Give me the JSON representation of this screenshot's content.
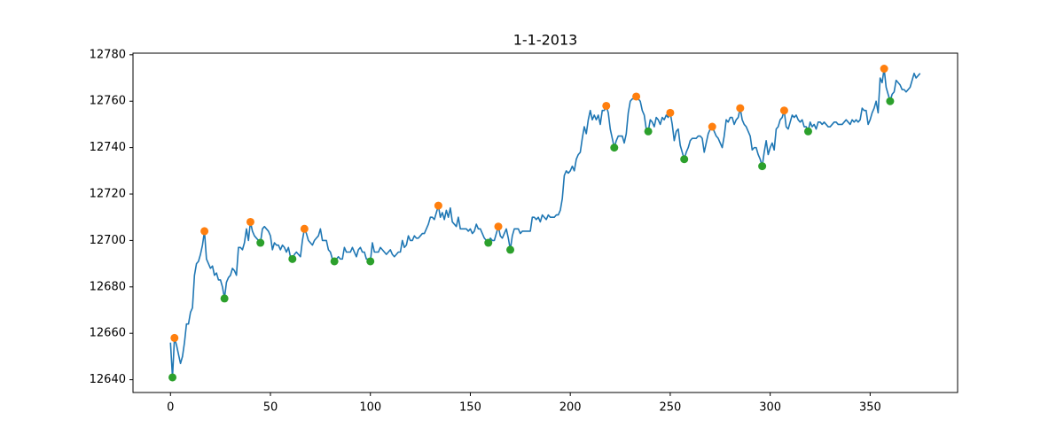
{
  "chart_data": {
    "type": "line",
    "title": "1-1-2013",
    "xlim": [
      -18.75,
      393.75
    ],
    "ylim": [
      12634.5,
      12780.7
    ],
    "xticks": [
      0,
      50,
      100,
      150,
      200,
      250,
      300,
      350
    ],
    "yticks": [
      12640,
      12660,
      12680,
      12700,
      12720,
      12740,
      12760,
      12780
    ],
    "grid": false,
    "series": [
      {
        "type": "line",
        "color": "#1f77b4",
        "x": [
          0,
          1,
          2,
          3,
          4,
          5,
          6,
          7,
          8,
          9,
          10,
          11,
          12,
          13,
          14,
          15,
          16,
          17,
          18,
          19,
          20,
          21,
          22,
          23,
          24,
          25,
          26,
          27,
          28,
          29,
          30,
          31,
          32,
          33,
          34,
          35,
          36,
          37,
          38,
          39,
          40,
          41,
          42,
          43,
          44,
          45,
          46,
          47,
          48,
          49,
          50,
          51,
          52,
          53,
          54,
          55,
          56,
          57,
          58,
          59,
          60,
          61,
          62,
          63,
          64,
          65,
          66,
          67,
          68,
          69,
          70,
          71,
          72,
          73,
          74,
          75,
          76,
          77,
          78,
          79,
          80,
          81,
          82,
          83,
          84,
          85,
          86,
          87,
          88,
          89,
          90,
          91,
          92,
          93,
          94,
          95,
          96,
          97,
          98,
          99,
          100,
          101,
          102,
          103,
          104,
          105,
          106,
          107,
          108,
          109,
          110,
          111,
          112,
          113,
          114,
          115,
          116,
          117,
          118,
          119,
          120,
          121,
          122,
          123,
          124,
          125,
          126,
          127,
          128,
          129,
          130,
          131,
          132,
          133,
          134,
          135,
          136,
          137,
          138,
          139,
          140,
          141,
          142,
          143,
          144,
          145,
          146,
          147,
          148,
          149,
          150,
          151,
          152,
          153,
          154,
          155,
          156,
          157,
          158,
          159,
          160,
          161,
          162,
          163,
          164,
          165,
          166,
          167,
          168,
          169,
          170,
          171,
          172,
          173,
          174,
          175,
          176,
          177,
          178,
          179,
          180,
          181,
          182,
          183,
          184,
          185,
          186,
          187,
          188,
          189,
          190,
          191,
          192,
          193,
          194,
          195,
          196,
          197,
          198,
          199,
          200,
          201,
          202,
          203,
          204,
          205,
          206,
          207,
          208,
          209,
          210,
          211,
          212,
          213,
          214,
          215,
          216,
          217,
          218,
          219,
          220,
          221,
          222,
          223,
          224,
          225,
          226,
          227,
          228,
          229,
          230,
          231,
          232,
          233,
          234,
          235,
          236,
          237,
          238,
          239,
          240,
          241,
          242,
          243,
          244,
          245,
          246,
          247,
          248,
          249,
          250,
          251,
          252,
          253,
          254,
          255,
          256,
          257,
          258,
          259,
          260,
          261,
          262,
          263,
          264,
          265,
          266,
          267,
          268,
          269,
          270,
          271,
          272,
          273,
          274,
          275,
          276,
          277,
          278,
          279,
          280,
          281,
          282,
          283,
          284,
          285,
          286,
          287,
          288,
          289,
          290,
          291,
          292,
          293,
          294,
          295,
          296,
          297,
          298,
          299,
          300,
          301,
          302,
          303,
          304,
          305,
          306,
          307,
          308,
          309,
          310,
          311,
          312,
          313,
          314,
          315,
          316,
          317,
          318,
          319,
          320,
          321,
          322,
          323,
          324,
          325,
          326,
          327,
          328,
          329,
          330,
          331,
          332,
          333,
          334,
          335,
          336,
          337,
          338,
          339,
          340,
          341,
          342,
          343,
          344,
          345,
          346,
          347,
          348,
          349,
          350,
          351,
          352,
          353,
          354,
          355,
          356,
          357,
          358,
          359,
          360,
          361,
          362,
          363,
          364,
          365,
          366,
          367,
          368,
          369,
          370,
          371,
          372,
          373,
          374,
          375
        ],
        "values": [
          12656,
          12641,
          12658,
          12655,
          12651,
          12647,
          12650,
          12656,
          12664,
          12664,
          12669,
          12671,
          12685,
          12690,
          12691,
          12694,
          12698,
          12704,
          12692,
          12690,
          12688,
          12689,
          12685,
          12686,
          12683,
          12683,
          12680,
          12675,
          12682,
          12684,
          12685,
          12688,
          12687,
          12685,
          12697,
          12697,
          12696,
          12699,
          12705,
          12700,
          12708,
          12704,
          12702,
          12701,
          12700,
          12699,
          12705,
          12706,
          12705,
          12704,
          12702,
          12696,
          12699,
          12698,
          12698,
          12696,
          12698,
          12697,
          12695,
          12697,
          12693,
          12692,
          12694,
          12695,
          12694,
          12693,
          12700,
          12705,
          12703,
          12700,
          12699,
          12698,
          12700,
          12701,
          12702,
          12705,
          12700,
          12700,
          12700,
          12696,
          12695,
          12692,
          12691,
          12692,
          12693,
          12692,
          12692,
          12697,
          12695,
          12695,
          12695,
          12697,
          12695,
          12693,
          12696,
          12697,
          12695,
          12695,
          12692,
          12692,
          12691,
          12699,
          12695,
          12695,
          12695,
          12697,
          12696,
          12695,
          12694,
          12695,
          12696,
          12694,
          12693,
          12694,
          12695,
          12695,
          12700,
          12697,
          12698,
          12702,
          12700,
          12700,
          12702,
          12701,
          12701,
          12702,
          12703,
          12703,
          12705,
          12707,
          12710,
          12710,
          12709,
          12712,
          12715,
          12710,
          12712,
          12709,
          12713,
          12710,
          12714,
          12708,
          12707,
          12706,
          12710,
          12705,
          12705,
          12705,
          12705,
          12704,
          12705,
          12703,
          12704,
          12707,
          12705,
          12705,
          12703,
          12701,
          12700,
          12699,
          12701,
          12700,
          12700,
          12703,
          12706,
          12702,
          12701,
          12703,
          12705,
          12701,
          12696,
          12702,
          12705,
          12705,
          12705,
          12703,
          12704,
          12704,
          12704,
          12704,
          12704,
          12710,
          12710,
          12709,
          12710,
          12708,
          12711,
          12710,
          12709,
          12711,
          12710,
          12710,
          12710,
          12711,
          12711,
          12713,
          12718,
          12728,
          12730,
          12729,
          12730,
          12732,
          12730,
          12735,
          12737,
          12738,
          12744,
          12749,
          12746,
          12752,
          12756,
          12752,
          12754,
          12752,
          12754,
          12750,
          12756,
          12756,
          12758,
          12755,
          12748,
          12744,
          12740,
          12743,
          12745,
          12745,
          12745,
          12742,
          12746,
          12755,
          12760,
          12761,
          12761,
          12762,
          12761,
          12760,
          12756,
          12754,
          12748,
          12747,
          12752,
          12751,
          12749,
          12753,
          12752,
          12750,
          12753,
          12752,
          12754,
          12753,
          12755,
          12750,
          12743,
          12747,
          12748,
          12741,
          12738,
          12735,
          12738,
          12740,
          12743,
          12744,
          12744,
          12744,
          12745,
          12745,
          12744,
          12738,
          12742,
          12746,
          12748,
          12749,
          12747,
          12745,
          12744,
          12742,
          12740,
          12745,
          12752,
          12751,
          12753,
          12753,
          12750,
          12752,
          12753,
          12757,
          12752,
          12750,
          12749,
          12747,
          12745,
          12739,
          12740,
          12740,
          12737,
          12735,
          12732,
          12738,
          12743,
          12737,
          12740,
          12742,
          12739,
          12748,
          12749,
          12752,
          12753,
          12756,
          12749,
          12748,
          12751,
          12754,
          12753,
          12754,
          12752,
          12751,
          12752,
          12749,
          12749,
          12747,
          12751,
          12749,
          12750,
          12748,
          12751,
          12751,
          12750,
          12751,
          12750,
          12749,
          12749,
          12750,
          12751,
          12751,
          12750,
          12750,
          12750,
          12751,
          12752,
          12751,
          12750,
          12752,
          12751,
          12752,
          12751,
          12752,
          12757,
          12756,
          12756,
          12750,
          12752,
          12755,
          12757,
          12760,
          12755,
          12770,
          12768,
          12774,
          12766,
          12763,
          12760,
          12763,
          12764,
          12769,
          12768,
          12767,
          12765,
          12765,
          12764,
          12765,
          12766,
          12769,
          12772,
          12770,
          12771,
          12772
        ]
      },
      {
        "type": "scatter",
        "color": "#ff7f0e",
        "x": [
          2,
          17,
          40,
          67,
          134,
          164,
          218,
          233,
          250,
          271,
          285,
          307,
          357
        ],
        "values": [
          12658,
          12704,
          12708,
          12705,
          12715,
          12706,
          12758,
          12762,
          12755,
          12749,
          12757,
          12756,
          12774
        ]
      },
      {
        "type": "scatter",
        "color": "#2ca02c",
        "x": [
          1,
          27,
          45,
          61,
          82,
          100,
          159,
          170,
          222,
          239,
          257,
          296,
          319,
          360
        ],
        "values": [
          12641,
          12675,
          12699,
          12692,
          12691,
          12691,
          12699,
          12696,
          12740,
          12747,
          12735,
          12732,
          12747,
          12760
        ]
      }
    ]
  }
}
